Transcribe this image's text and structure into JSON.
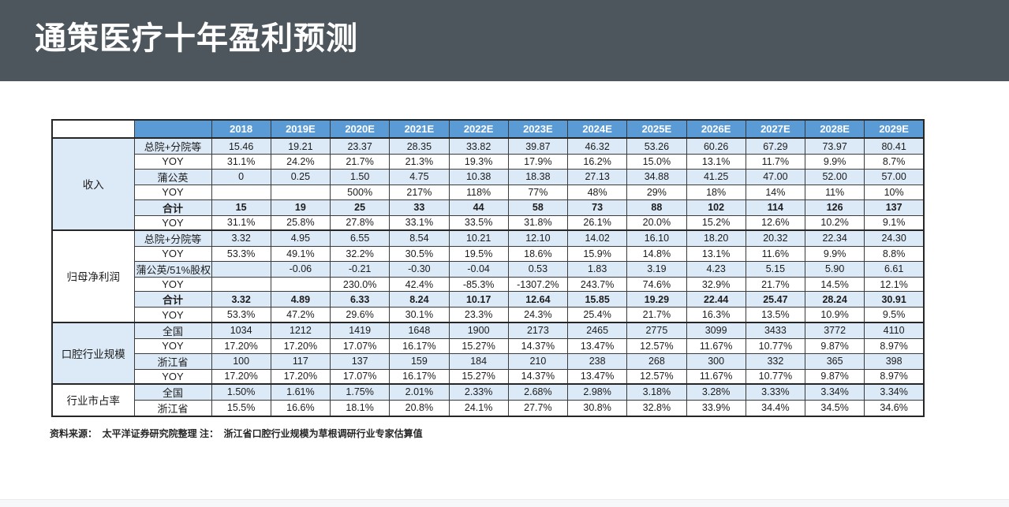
{
  "header": {
    "title": "通策医疗十年盈利预测"
  },
  "colors": {
    "title_bar_bg": "#4d565c",
    "table_header_blue": "#5b9bd5",
    "row_stripe_blue": "#dce9f6",
    "table_border": "#3b3b3b"
  },
  "table": {
    "corner_label": "",
    "years": [
      "2018",
      "2019E",
      "2020E",
      "2021E",
      "2022E",
      "2023E",
      "2024E",
      "2025E",
      "2026E",
      "2027E",
      "2028E",
      "2029E"
    ],
    "groups": [
      {
        "name": "收入",
        "rows": [
          {
            "label": "总院+分院等",
            "bold": false,
            "values": [
              "15.46",
              "19.21",
              "23.37",
              "28.35",
              "33.82",
              "39.87",
              "46.32",
              "53.26",
              "60.26",
              "67.29",
              "73.97",
              "80.41"
            ]
          },
          {
            "label": "YOY",
            "bold": false,
            "values": [
              "31.1%",
              "24.2%",
              "21.7%",
              "21.3%",
              "19.3%",
              "17.9%",
              "16.2%",
              "15.0%",
              "13.1%",
              "11.7%",
              "9.9%",
              "8.7%"
            ]
          },
          {
            "label": "蒲公英",
            "bold": false,
            "values": [
              "0",
              "0.25",
              "1.50",
              "4.75",
              "10.38",
              "18.38",
              "27.13",
              "34.88",
              "41.25",
              "47.00",
              "52.00",
              "57.00"
            ]
          },
          {
            "label": "YOY",
            "bold": false,
            "values": [
              "",
              "",
              "500%",
              "217%",
              "118%",
              "77%",
              "48%",
              "29%",
              "18%",
              "14%",
              "11%",
              "10%"
            ]
          },
          {
            "label": "合计",
            "bold": true,
            "values": [
              "15",
              "19",
              "25",
              "33",
              "44",
              "58",
              "73",
              "88",
              "102",
              "114",
              "126",
              "137"
            ]
          },
          {
            "label": "YOY",
            "bold": false,
            "values": [
              "31.1%",
              "25.8%",
              "27.8%",
              "33.1%",
              "33.5%",
              "31.8%",
              "26.1%",
              "20.0%",
              "15.2%",
              "12.6%",
              "10.2%",
              "9.1%"
            ]
          }
        ]
      },
      {
        "name": "归母净利润",
        "rows": [
          {
            "label": "总院+分院等",
            "bold": false,
            "values": [
              "3.32",
              "4.95",
              "6.55",
              "8.54",
              "10.21",
              "12.10",
              "14.02",
              "16.10",
              "18.20",
              "20.32",
              "22.34",
              "24.30"
            ]
          },
          {
            "label": "YOY",
            "bold": false,
            "values": [
              "53.3%",
              "49.1%",
              "32.2%",
              "30.5%",
              "19.5%",
              "18.6%",
              "15.9%",
              "14.8%",
              "13.1%",
              "11.6%",
              "9.9%",
              "8.8%"
            ]
          },
          {
            "label": "蒲公英/51%股权",
            "bold": false,
            "values": [
              "",
              "-0.06",
              "-0.21",
              "-0.30",
              "-0.04",
              "0.53",
              "1.83",
              "3.19",
              "4.23",
              "5.15",
              "5.90",
              "6.61"
            ]
          },
          {
            "label": "YOY",
            "bold": false,
            "values": [
              "",
              "",
              "230.0%",
              "42.4%",
              "-85.3%",
              "-1307.2%",
              "243.7%",
              "74.6%",
              "32.9%",
              "21.7%",
              "14.5%",
              "12.1%"
            ]
          },
          {
            "label": "合计",
            "bold": true,
            "values": [
              "3.32",
              "4.89",
              "6.33",
              "8.24",
              "10.17",
              "12.64",
              "15.85",
              "19.29",
              "22.44",
              "25.47",
              "28.24",
              "30.91"
            ]
          },
          {
            "label": "YOY",
            "bold": false,
            "values": [
              "53.3%",
              "47.2%",
              "29.6%",
              "30.1%",
              "23.3%",
              "24.3%",
              "25.4%",
              "21.7%",
              "16.3%",
              "13.5%",
              "10.9%",
              "9.5%"
            ]
          }
        ]
      },
      {
        "name": "口腔行业规模",
        "rows": [
          {
            "label": "全国",
            "bold": false,
            "values": [
              "1034",
              "1212",
              "1419",
              "1648",
              "1900",
              "2173",
              "2465",
              "2775",
              "3099",
              "3433",
              "3772",
              "4110"
            ]
          },
          {
            "label": "YOY",
            "bold": false,
            "values": [
              "17.20%",
              "17.20%",
              "17.07%",
              "16.17%",
              "15.27%",
              "14.37%",
              "13.47%",
              "12.57%",
              "11.67%",
              "10.77%",
              "9.87%",
              "8.97%"
            ]
          },
          {
            "label": "浙江省",
            "bold": false,
            "values": [
              "100",
              "117",
              "137",
              "159",
              "184",
              "210",
              "238",
              "268",
              "300",
              "332",
              "365",
              "398"
            ]
          },
          {
            "label": "YOY",
            "bold": false,
            "values": [
              "17.20%",
              "17.20%",
              "17.07%",
              "16.17%",
              "15.27%",
              "14.37%",
              "13.47%",
              "12.57%",
              "11.67%",
              "10.77%",
              "9.87%",
              "8.97%"
            ]
          }
        ]
      },
      {
        "name": "行业市占率",
        "rows": [
          {
            "label": "全国",
            "bold": false,
            "values": [
              "1.50%",
              "1.61%",
              "1.75%",
              "2.01%",
              "2.33%",
              "2.68%",
              "2.98%",
              "3.18%",
              "3.28%",
              "3.33%",
              "3.34%",
              "3.34%"
            ]
          },
          {
            "label": "浙江省",
            "bold": false,
            "values": [
              "15.5%",
              "16.6%",
              "18.1%",
              "20.8%",
              "24.1%",
              "27.7%",
              "30.8%",
              "32.8%",
              "33.9%",
              "34.4%",
              "34.5%",
              "34.6%"
            ]
          }
        ]
      }
    ]
  },
  "footer": {
    "note": "资料来源：  太平洋证券研究院整理 注：  浙江省口腔行业规模为草根调研行业专家估算值"
  }
}
